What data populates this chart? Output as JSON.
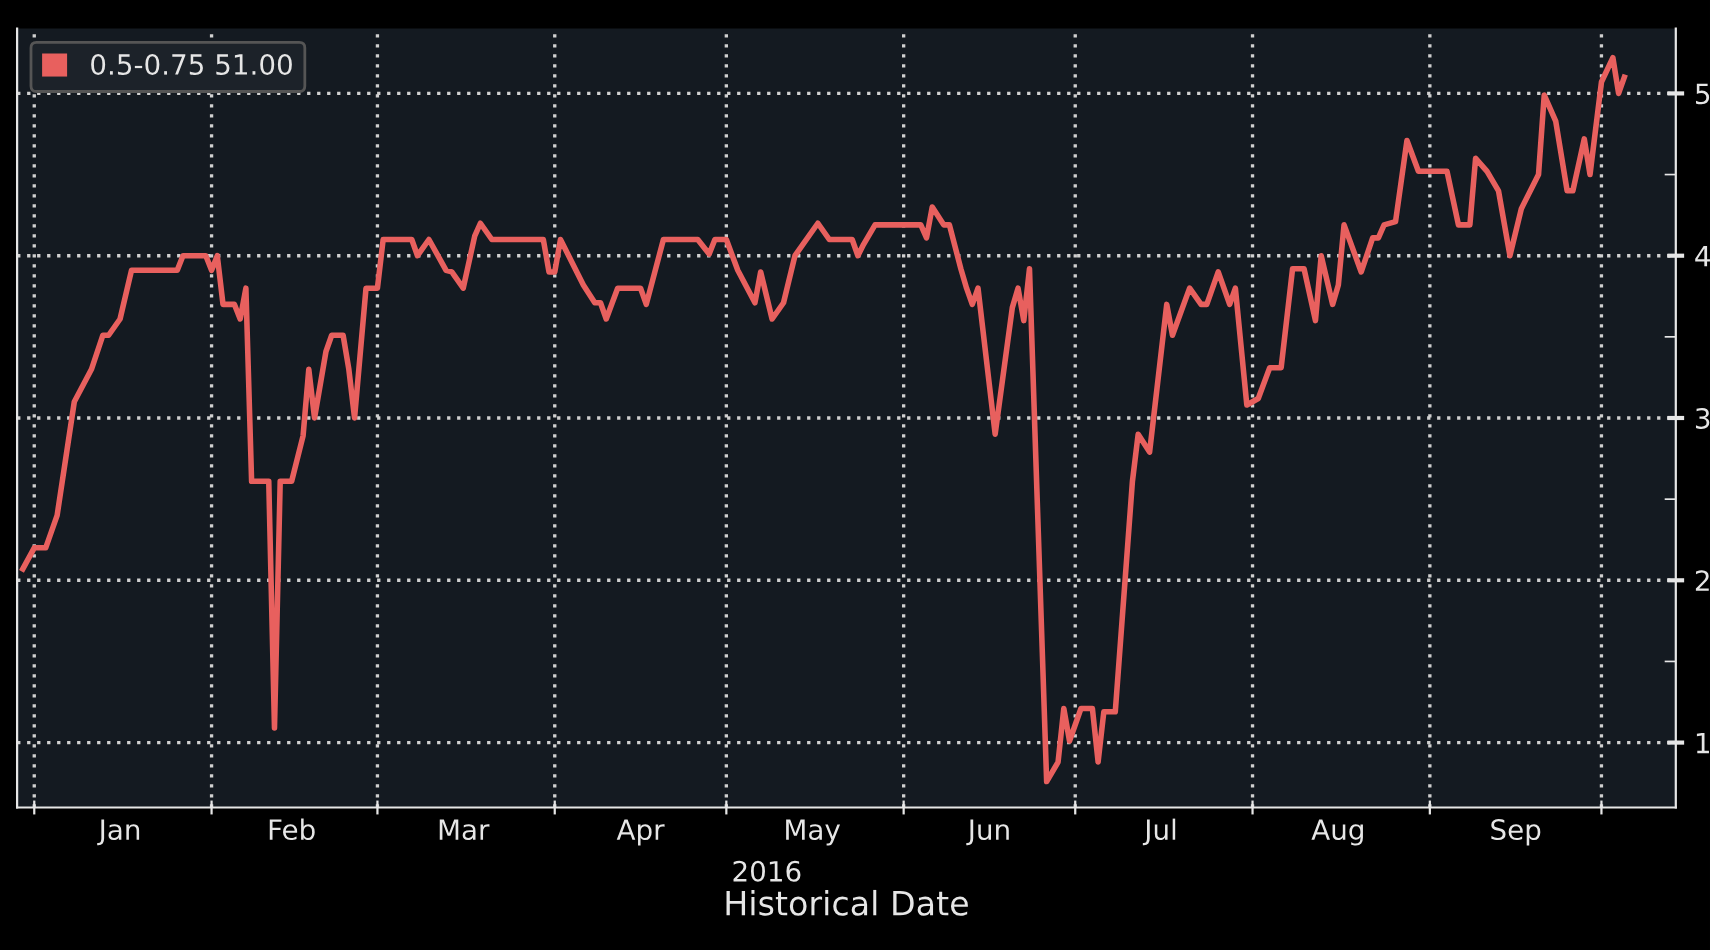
{
  "chart_data": {
    "type": "line",
    "xlabel": "Historical Date",
    "annotations": [
      "2016"
    ],
    "series": [
      {
        "name": "0.5-0.75 51.00",
        "color": "#e8605e",
        "x": [
          "2015-12-30",
          "2016-01-01",
          "2016-01-03",
          "2016-01-05",
          "2016-01-08",
          "2016-01-11",
          "2016-01-13",
          "2016-01-14",
          "2016-01-16",
          "2016-01-18",
          "2016-01-26",
          "2016-01-27",
          "2016-01-31",
          "2016-02-01",
          "2016-02-02",
          "2016-02-03",
          "2016-02-05",
          "2016-02-06",
          "2016-02-07",
          "2016-02-08",
          "2016-02-11",
          "2016-02-12",
          "2016-02-13",
          "2016-02-15",
          "2016-02-17",
          "2016-02-18",
          "2016-02-19",
          "2016-02-21",
          "2016-02-22",
          "2016-02-24",
          "2016-02-25",
          "2016-02-26",
          "2016-02-28",
          "2016-03-01",
          "2016-03-02",
          "2016-03-07",
          "2016-03-08",
          "2016-03-10",
          "2016-03-13",
          "2016-03-14",
          "2016-03-16",
          "2016-03-18",
          "2016-03-19",
          "2016-03-21",
          "2016-03-30",
          "2016-03-31",
          "2016-04-01",
          "2016-04-02",
          "2016-04-04",
          "2016-04-06",
          "2016-04-08",
          "2016-04-09",
          "2016-04-10",
          "2016-04-12",
          "2016-04-16",
          "2016-04-17",
          "2016-04-20",
          "2016-04-26",
          "2016-04-28",
          "2016-04-29",
          "2016-05-01",
          "2016-05-03",
          "2016-05-06",
          "2016-05-07",
          "2016-05-09",
          "2016-05-11",
          "2016-05-13",
          "2016-05-17",
          "2016-05-19",
          "2016-05-23",
          "2016-05-24",
          "2016-05-25",
          "2016-05-27",
          "2016-06-04",
          "2016-06-05",
          "2016-06-06",
          "2016-06-08",
          "2016-06-09",
          "2016-06-11",
          "2016-06-12",
          "2016-06-13",
          "2016-06-14",
          "2016-06-17",
          "2016-06-20",
          "2016-06-21",
          "2016-06-22",
          "2016-06-23",
          "2016-06-26",
          "2016-06-28",
          "2016-06-29",
          "2016-06-30",
          "2016-07-02",
          "2016-07-04",
          "2016-07-05",
          "2016-07-06",
          "2016-07-08",
          "2016-07-11",
          "2016-07-12",
          "2016-07-14",
          "2016-07-17",
          "2016-07-18",
          "2016-07-21",
          "2016-07-23",
          "2016-07-24",
          "2016-07-26",
          "2016-07-28",
          "2016-07-29",
          "2016-07-31",
          "2016-08-02",
          "2016-08-04",
          "2016-08-06",
          "2016-08-08",
          "2016-08-10",
          "2016-08-12",
          "2016-08-13",
          "2016-08-15",
          "2016-08-16",
          "2016-08-17",
          "2016-08-20",
          "2016-08-22",
          "2016-08-23",
          "2016-08-24",
          "2016-08-26",
          "2016-08-28",
          "2016-08-30",
          "2016-09-04",
          "2016-09-06",
          "2016-09-08",
          "2016-09-09",
          "2016-09-11",
          "2016-09-13",
          "2016-09-15",
          "2016-09-17",
          "2016-09-20",
          "2016-09-21",
          "2016-09-23",
          "2016-09-25",
          "2016-09-26",
          "2016-09-28",
          "2016-09-29",
          "2016-10-01",
          "2016-10-03",
          "2016-10-04",
          "2016-10-05"
        ],
        "values": [
          2.07,
          2.2,
          2.2,
          2.4,
          3.1,
          3.3,
          3.51,
          3.51,
          3.61,
          3.91,
          3.91,
          4.0,
          4.0,
          3.91,
          4.0,
          3.7,
          3.7,
          3.61,
          3.8,
          2.61,
          2.61,
          1.09,
          2.61,
          2.61,
          2.89,
          3.3,
          3.0,
          3.41,
          3.51,
          3.51,
          3.3,
          3.0,
          3.8,
          3.8,
          4.1,
          4.1,
          4.0,
          4.1,
          3.91,
          3.9,
          3.8,
          4.12,
          4.2,
          4.1,
          4.1,
          3.9,
          3.9,
          4.1,
          3.96,
          3.82,
          3.71,
          3.71,
          3.61,
          3.8,
          3.8,
          3.7,
          4.1,
          4.1,
          4.01,
          4.1,
          4.1,
          3.91,
          3.71,
          3.9,
          3.61,
          3.71,
          4.0,
          4.2,
          4.1,
          4.1,
          4.0,
          4.07,
          4.19,
          4.19,
          4.11,
          4.3,
          4.19,
          4.19,
          3.92,
          3.8,
          3.7,
          3.8,
          2.9,
          3.68,
          3.8,
          3.6,
          3.92,
          0.76,
          0.88,
          1.21,
          1.01,
          1.21,
          1.21,
          0.88,
          1.19,
          1.19,
          2.61,
          2.9,
          2.79,
          3.7,
          3.51,
          3.8,
          3.7,
          3.7,
          3.9,
          3.7,
          3.8,
          3.08,
          3.12,
          3.31,
          3.31,
          3.92,
          3.92,
          3.6,
          4.0,
          3.7,
          3.82,
          4.19,
          3.9,
          4.11,
          4.11,
          4.19,
          4.21,
          4.71,
          4.52,
          4.52,
          4.19,
          4.19,
          4.6,
          4.52,
          4.4,
          4.0,
          4.29,
          4.5,
          4.99,
          4.83,
          4.4,
          4.4,
          4.72,
          4.5,
          5.07,
          5.22,
          5.0,
          5.1
        ]
      }
    ],
    "xlim": [
      "2015-12-29",
      "2016-10-14"
    ],
    "xticks": [
      {
        "value": "2016-01-01",
        "label": null
      },
      {
        "value": "2016-02-01",
        "label": null
      },
      {
        "value": "2016-03-01",
        "label": null
      },
      {
        "value": "2016-04-01",
        "label": null
      },
      {
        "value": "2016-05-01",
        "label": null
      },
      {
        "value": "2016-06-01",
        "label": null
      },
      {
        "value": "2016-07-01",
        "label": null
      },
      {
        "value": "2016-08-01",
        "label": null
      },
      {
        "value": "2016-09-01",
        "label": null
      },
      {
        "value": "2016-10-01",
        "label": null
      },
      {
        "value": "2016-01-16",
        "label": "Jan"
      },
      {
        "value": "2016-02-15",
        "label": "Feb"
      },
      {
        "value": "2016-03-16",
        "label": "Mar"
      },
      {
        "value": "2016-04-16",
        "label": "Apr"
      },
      {
        "value": "2016-05-16",
        "label": "May"
      },
      {
        "value": "2016-06-16",
        "label": "Jun"
      },
      {
        "value": "2016-07-16",
        "label": "Jul"
      },
      {
        "value": "2016-08-16",
        "label": "Aug"
      },
      {
        "value": "2016-09-16",
        "label": "Sep"
      }
    ],
    "ylim": [
      0.6,
      5.4
    ],
    "yticks": [
      1,
      {
        "value": 1.5,
        "label": null
      },
      2,
      {
        "value": 2.5,
        "label": null
      },
      3,
      {
        "value": 3.5,
        "label": null
      },
      4,
      {
        "value": 4.5,
        "label": null
      },
      5
    ],
    "grid": true,
    "legend": "top left",
    "marker": "none",
    "line_style": "solid"
  }
}
